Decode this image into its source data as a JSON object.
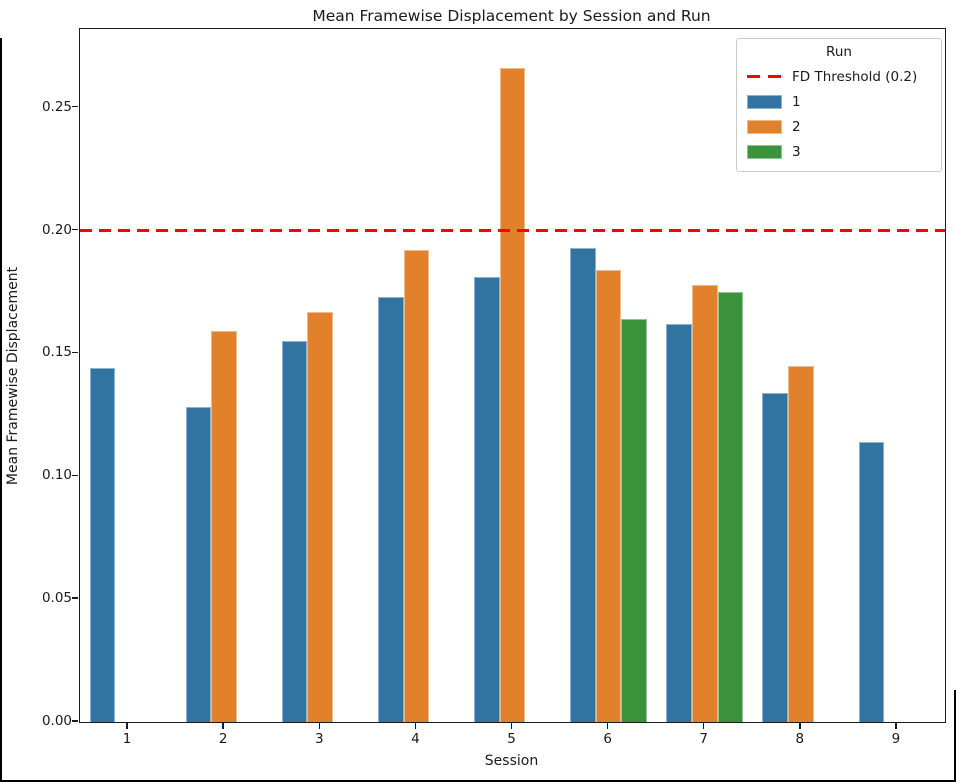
{
  "figure": {
    "title": "Mean Framewise Displacement by Session and Run",
    "xlabel": "Session",
    "ylabel": "Mean Framewise Displacement"
  },
  "legend": {
    "title": "Run",
    "position": "upper right",
    "threshold_label": "FD Threshold (0.2)"
  },
  "colors": {
    "run1": "#3274a1",
    "run2": "#e1812c",
    "run3": "#3a923a",
    "threshold": "#ff0000",
    "spine": "#1b1b1b",
    "background": "#ffffff"
  },
  "chart_data": {
    "type": "bar",
    "title": "Mean Framewise Displacement by Session and Run",
    "xlabel": "Session",
    "ylabel": "Mean Framewise Displacement",
    "categories": [
      "1",
      "2",
      "3",
      "4",
      "5",
      "6",
      "7",
      "8",
      "9"
    ],
    "series": [
      {
        "name": "1",
        "color": "#3274a1",
        "values": [
          0.144,
          0.128,
          0.155,
          0.173,
          0.181,
          0.193,
          0.162,
          0.134,
          0.114
        ]
      },
      {
        "name": "2",
        "color": "#e1812c",
        "values": [
          null,
          0.159,
          0.167,
          0.192,
          0.266,
          0.184,
          0.178,
          0.145,
          null
        ]
      },
      {
        "name": "3",
        "color": "#3a923a",
        "values": [
          null,
          null,
          null,
          null,
          null,
          0.164,
          0.175,
          null,
          null
        ]
      }
    ],
    "threshold": {
      "value": 0.2,
      "color": "#ff0000",
      "label": "FD Threshold (0.2)",
      "style": "dashed"
    },
    "ylim": [
      0,
      0.282
    ],
    "yticks": [
      0.0,
      0.05,
      0.1,
      0.15,
      0.2,
      0.25
    ],
    "grid": false,
    "legend_position": "upper right",
    "bar_group_width_fraction": 0.8
  }
}
